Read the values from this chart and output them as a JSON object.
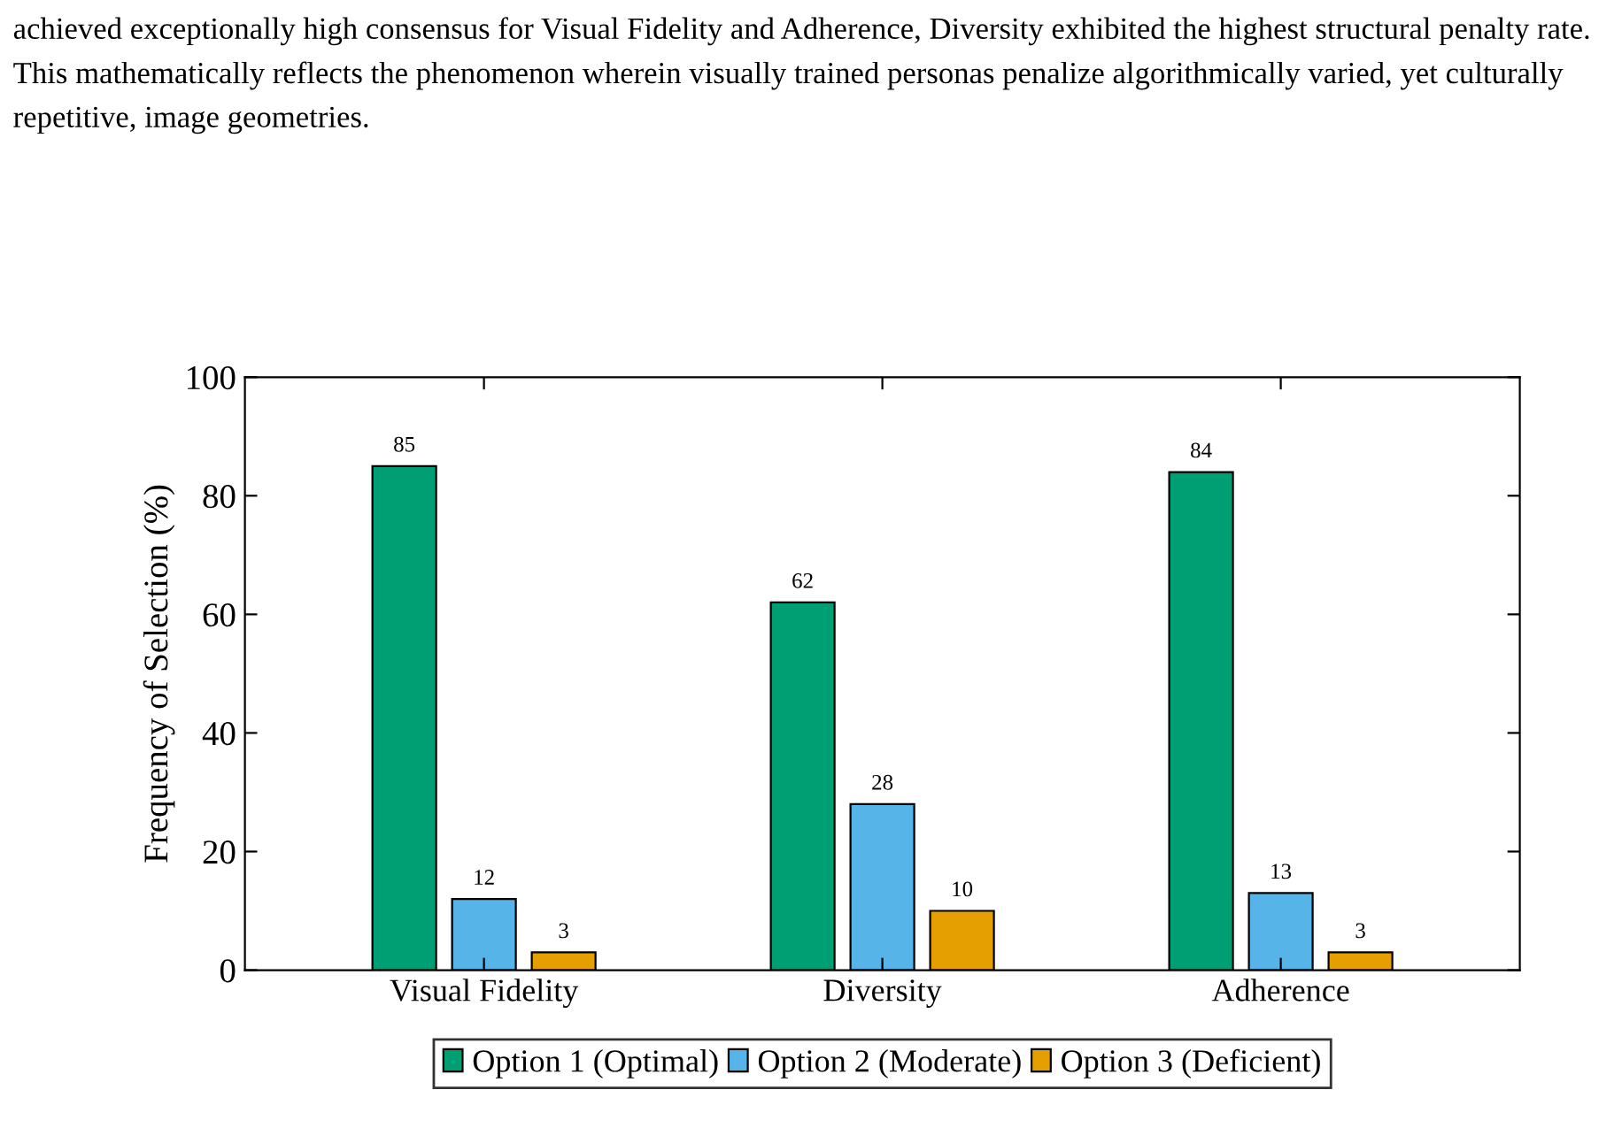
{
  "chart_data": {
    "type": "bar",
    "annotations": [
      "achieved exceptionally high consensus for Visual Fidelity and Adherence, Diversity exhibited the highest structural penalty rate. This mathematically reflects the phenomenon wherein visually trained personas penalize algorithmically varied, yet culturally repetitive, image geometries."
    ],
    "ylabel": "Frequency of Selection (%)",
    "categories": [
      "Visual Fidelity",
      "Diversity",
      "Adherence"
    ],
    "series": [
      {
        "name": "Option 1 (Optimal)",
        "color": "#009e73",
        "values": [
          85,
          62,
          84
        ]
      },
      {
        "name": "Option 2 (Moderate)",
        "color": "#56b4e9",
        "values": [
          12,
          28,
          13
        ]
      },
      {
        "name": "Option 3 (Deficient)",
        "color": "#e69f00",
        "values": [
          3,
          10,
          3
        ]
      }
    ],
    "ylim": [
      0,
      100
    ],
    "yticks": [
      0,
      20,
      40,
      60,
      80,
      100
    ],
    "data_labels": true,
    "legend": "bottom",
    "grid": false
  }
}
